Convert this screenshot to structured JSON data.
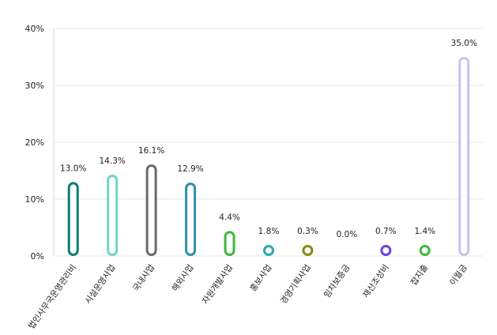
{
  "chart_data": {
    "type": "bar",
    "title": "",
    "xlabel": "",
    "ylabel": "",
    "ylim": [
      0,
      40
    ],
    "yticks": [
      0,
      10,
      20,
      30,
      40
    ],
    "ytick_labels": [
      "0%",
      "10%",
      "20%",
      "30%",
      "40%"
    ],
    "grid": true,
    "legend": "none",
    "bar_style": "rounded-outline",
    "categories": [
      "법인사무국운영관리비",
      "시설운영사업",
      "국내사업",
      "해외사업",
      "자원개발사업",
      "홍보사업",
      "경영기획사업",
      "임차보증금",
      "재산조성비",
      "잡지출",
      "이월금"
    ],
    "values": [
      13.0,
      14.3,
      16.1,
      12.9,
      4.4,
      1.8,
      0.3,
      0.0,
      0.7,
      1.4,
      35.0
    ],
    "value_labels": [
      "13.0%",
      "14.3%",
      "16.1%",
      "12.9%",
      "4.4%",
      "1.8%",
      "0.3%",
      "0.0%",
      "0.7%",
      "1.4%",
      "35.0%"
    ],
    "colors": [
      "#0e7a78",
      "#6fd6c7",
      "#6a6a6a",
      "#2f8faa",
      "#3cb83c",
      "#2aa9b4",
      "#8a8a10",
      "#999999",
      "#6b3fe0",
      "#3cb83c",
      "#c9c0ee"
    ]
  }
}
